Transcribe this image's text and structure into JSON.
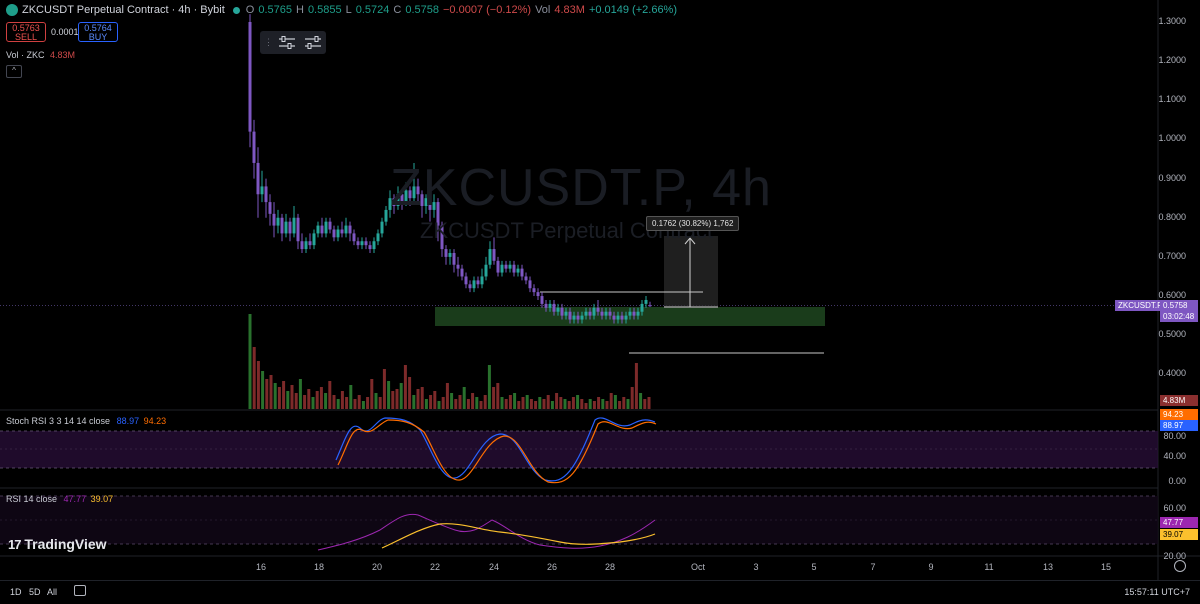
{
  "header": {
    "title": "ZKCUSDT Perpetual Contract · 4h · Bybit",
    "ohlc": [
      {
        "label": "O",
        "value": "0.5765"
      },
      {
        "label": "H",
        "value": "0.5855"
      },
      {
        "label": "L",
        "value": "0.5724"
      },
      {
        "label": "C",
        "value": "0.5758"
      }
    ],
    "change": "−0.0007 (−0.12%)",
    "vol_label": "Vol",
    "vol_value": "4.83M",
    "vol_change": "+0.0149 (+2.66%)"
  },
  "trade": {
    "sell_price": "0.5763",
    "sell_label": "SELL",
    "spread": "0.0001",
    "buy_price": "0.5764",
    "buy_label": "BUY"
  },
  "volume_legend": {
    "label": "Vol · ZKC",
    "value": "4.83M"
  },
  "watermark": {
    "symbol": "ZKCUSDT.P, 4h",
    "name": "ZKCUSDT Perpetual Contract"
  },
  "measure_label": "0.1762 (30.82%) 1,762",
  "price_axis": [
    "1.3000",
    "1.2000",
    "1.1000",
    "1.0000",
    "0.9000",
    "0.8000",
    "0.7000",
    "0.6000",
    "0.5000",
    "0.4000"
  ],
  "last_price": {
    "symbol": "ZKCUSDT.P",
    "price": "0.5758",
    "countdown": "03:02:48"
  },
  "volume_tag": "4.83M",
  "stoch_rsi": {
    "label": "Stoch RSI 3 3 14 14 close",
    "k_value": "88.97",
    "d_value": "94.23",
    "axis": [
      "80.00",
      "40.00",
      "0.00"
    ],
    "k_color": "#2962ff",
    "d_color": "#ff6d00"
  },
  "rsi": {
    "label": "RSI 14 close",
    "rsi_value": "47.77",
    "ma_value": "39.07",
    "axis": [
      "60.00",
      "20.00"
    ],
    "rsi_color": "#9c27b0",
    "ma_color": "#fbc02d"
  },
  "time_axis": [
    "16",
    "18",
    "20",
    "22",
    "24",
    "26",
    "28",
    "Oct",
    "3",
    "5",
    "7",
    "9",
    "11",
    "13",
    "15"
  ],
  "bottom_bar": {
    "ranges": [
      "1D",
      "5D",
      "All"
    ],
    "clock": "15:57:11 UTC+7"
  },
  "brand": "TradingView",
  "colors": {
    "up": "#26a69a",
    "down": "#7e57c2",
    "zone": "#1e4620",
    "bg": "#000000"
  }
}
